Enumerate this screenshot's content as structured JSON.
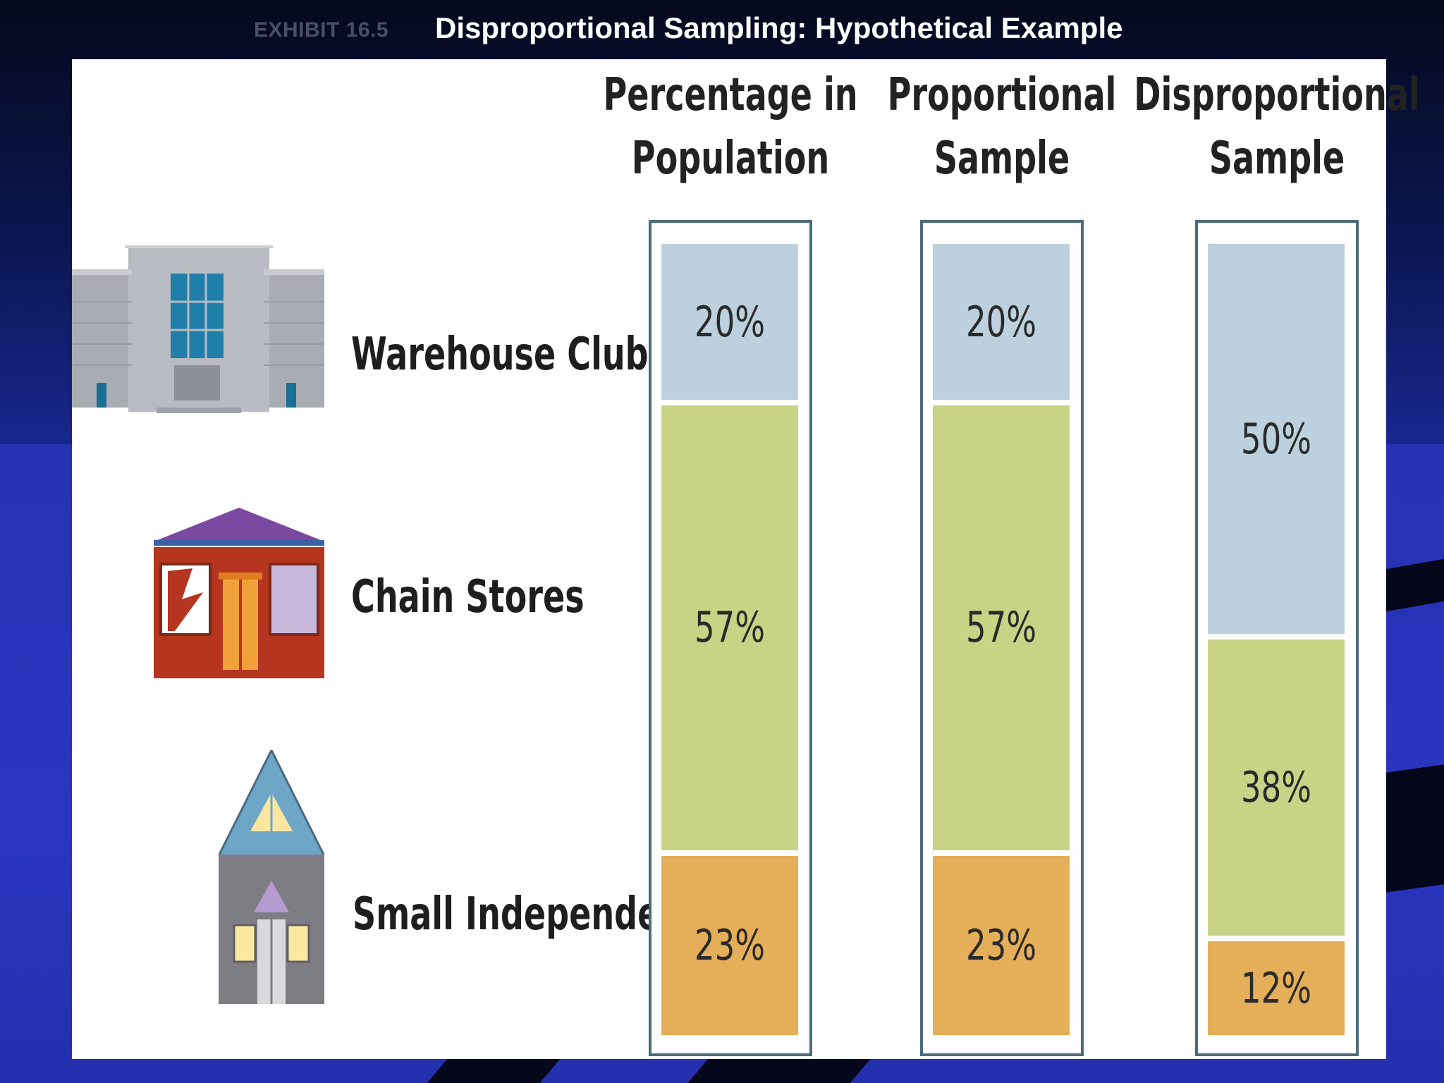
{
  "header": {
    "exhibit": "EXHIBIT 16.5",
    "title": "Disproportional Sampling: Hypothetical Example"
  },
  "row_icons": [
    "warehouse-building-icon",
    "chain-store-icon",
    "small-house-icon"
  ],
  "colors": {
    "Warehouse Clubs": "#bcd1dd",
    "Chain Stores": "#c8d386",
    "Small Independents": "#e5ae58"
  },
  "chart_data": {
    "type": "bar",
    "stacked": true,
    "orientation": "vertical",
    "categories": [
      "Percentage in Population",
      "Proportional Sample",
      "Disproportional Sample"
    ],
    "series": [
      {
        "name": "Warehouse Clubs",
        "values": [
          20,
          20,
          50
        ],
        "labels": [
          "20%",
          "20%",
          "50%"
        ]
      },
      {
        "name": "Chain Stores",
        "values": [
          57,
          57,
          38
        ],
        "labels": [
          "57%",
          "57%",
          "38%"
        ]
      },
      {
        "name": "Small Independents",
        "values": [
          23,
          23,
          12
        ],
        "labels": [
          "23%",
          "23%",
          "12%"
        ]
      }
    ],
    "ylim": [
      0,
      100
    ],
    "grid": false,
    "legend": "left"
  }
}
